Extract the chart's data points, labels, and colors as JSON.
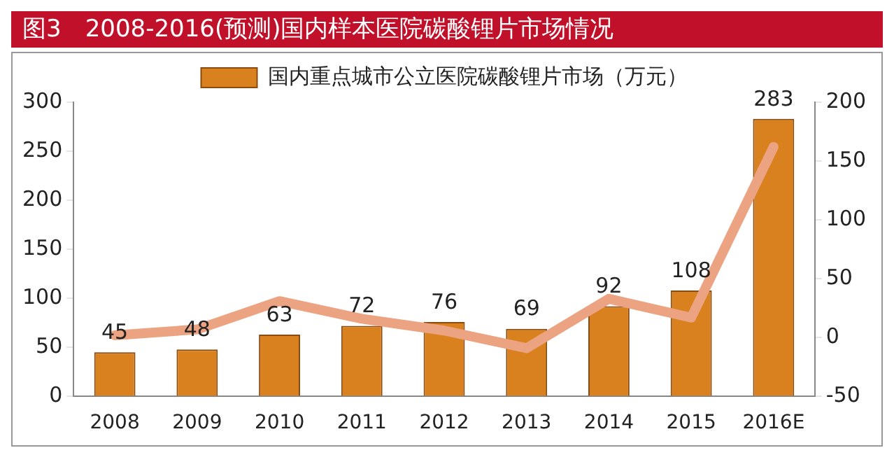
{
  "chart_data": {
    "type": "bar",
    "title": "图3　2008-2016(预测)国内样本医院碳酸锂片市场情况",
    "categories": [
      "2008",
      "2009",
      "2010",
      "2011",
      "2012",
      "2013",
      "2014",
      "2015",
      "2016E"
    ],
    "series": [
      {
        "name": "国内重点城市公立医院碳酸锂片市场（万元）",
        "color": "#d9801f",
        "values": [
          45,
          48,
          63,
          72,
          76,
          69,
          92,
          108,
          283
        ],
        "value_labels": [
          "45",
          "48",
          "63",
          "72",
          "76",
          "69",
          "92",
          "108",
          "283"
        ]
      },
      {
        "type": "line",
        "axis": "y2",
        "color": "#eba381",
        "values": [
          2,
          7,
          31,
          16,
          6,
          -9,
          33,
          17,
          162
        ]
      }
    ],
    "ylim": [
      0,
      300
    ],
    "yticks": [
      0,
      50,
      100,
      150,
      200,
      250,
      300
    ],
    "y2lim": [
      -50,
      200
    ],
    "y2ticks": [
      -50,
      0,
      50,
      100,
      150,
      200
    ],
    "grid": false,
    "legend": "top",
    "marker": "none",
    "line_style": "solid"
  }
}
